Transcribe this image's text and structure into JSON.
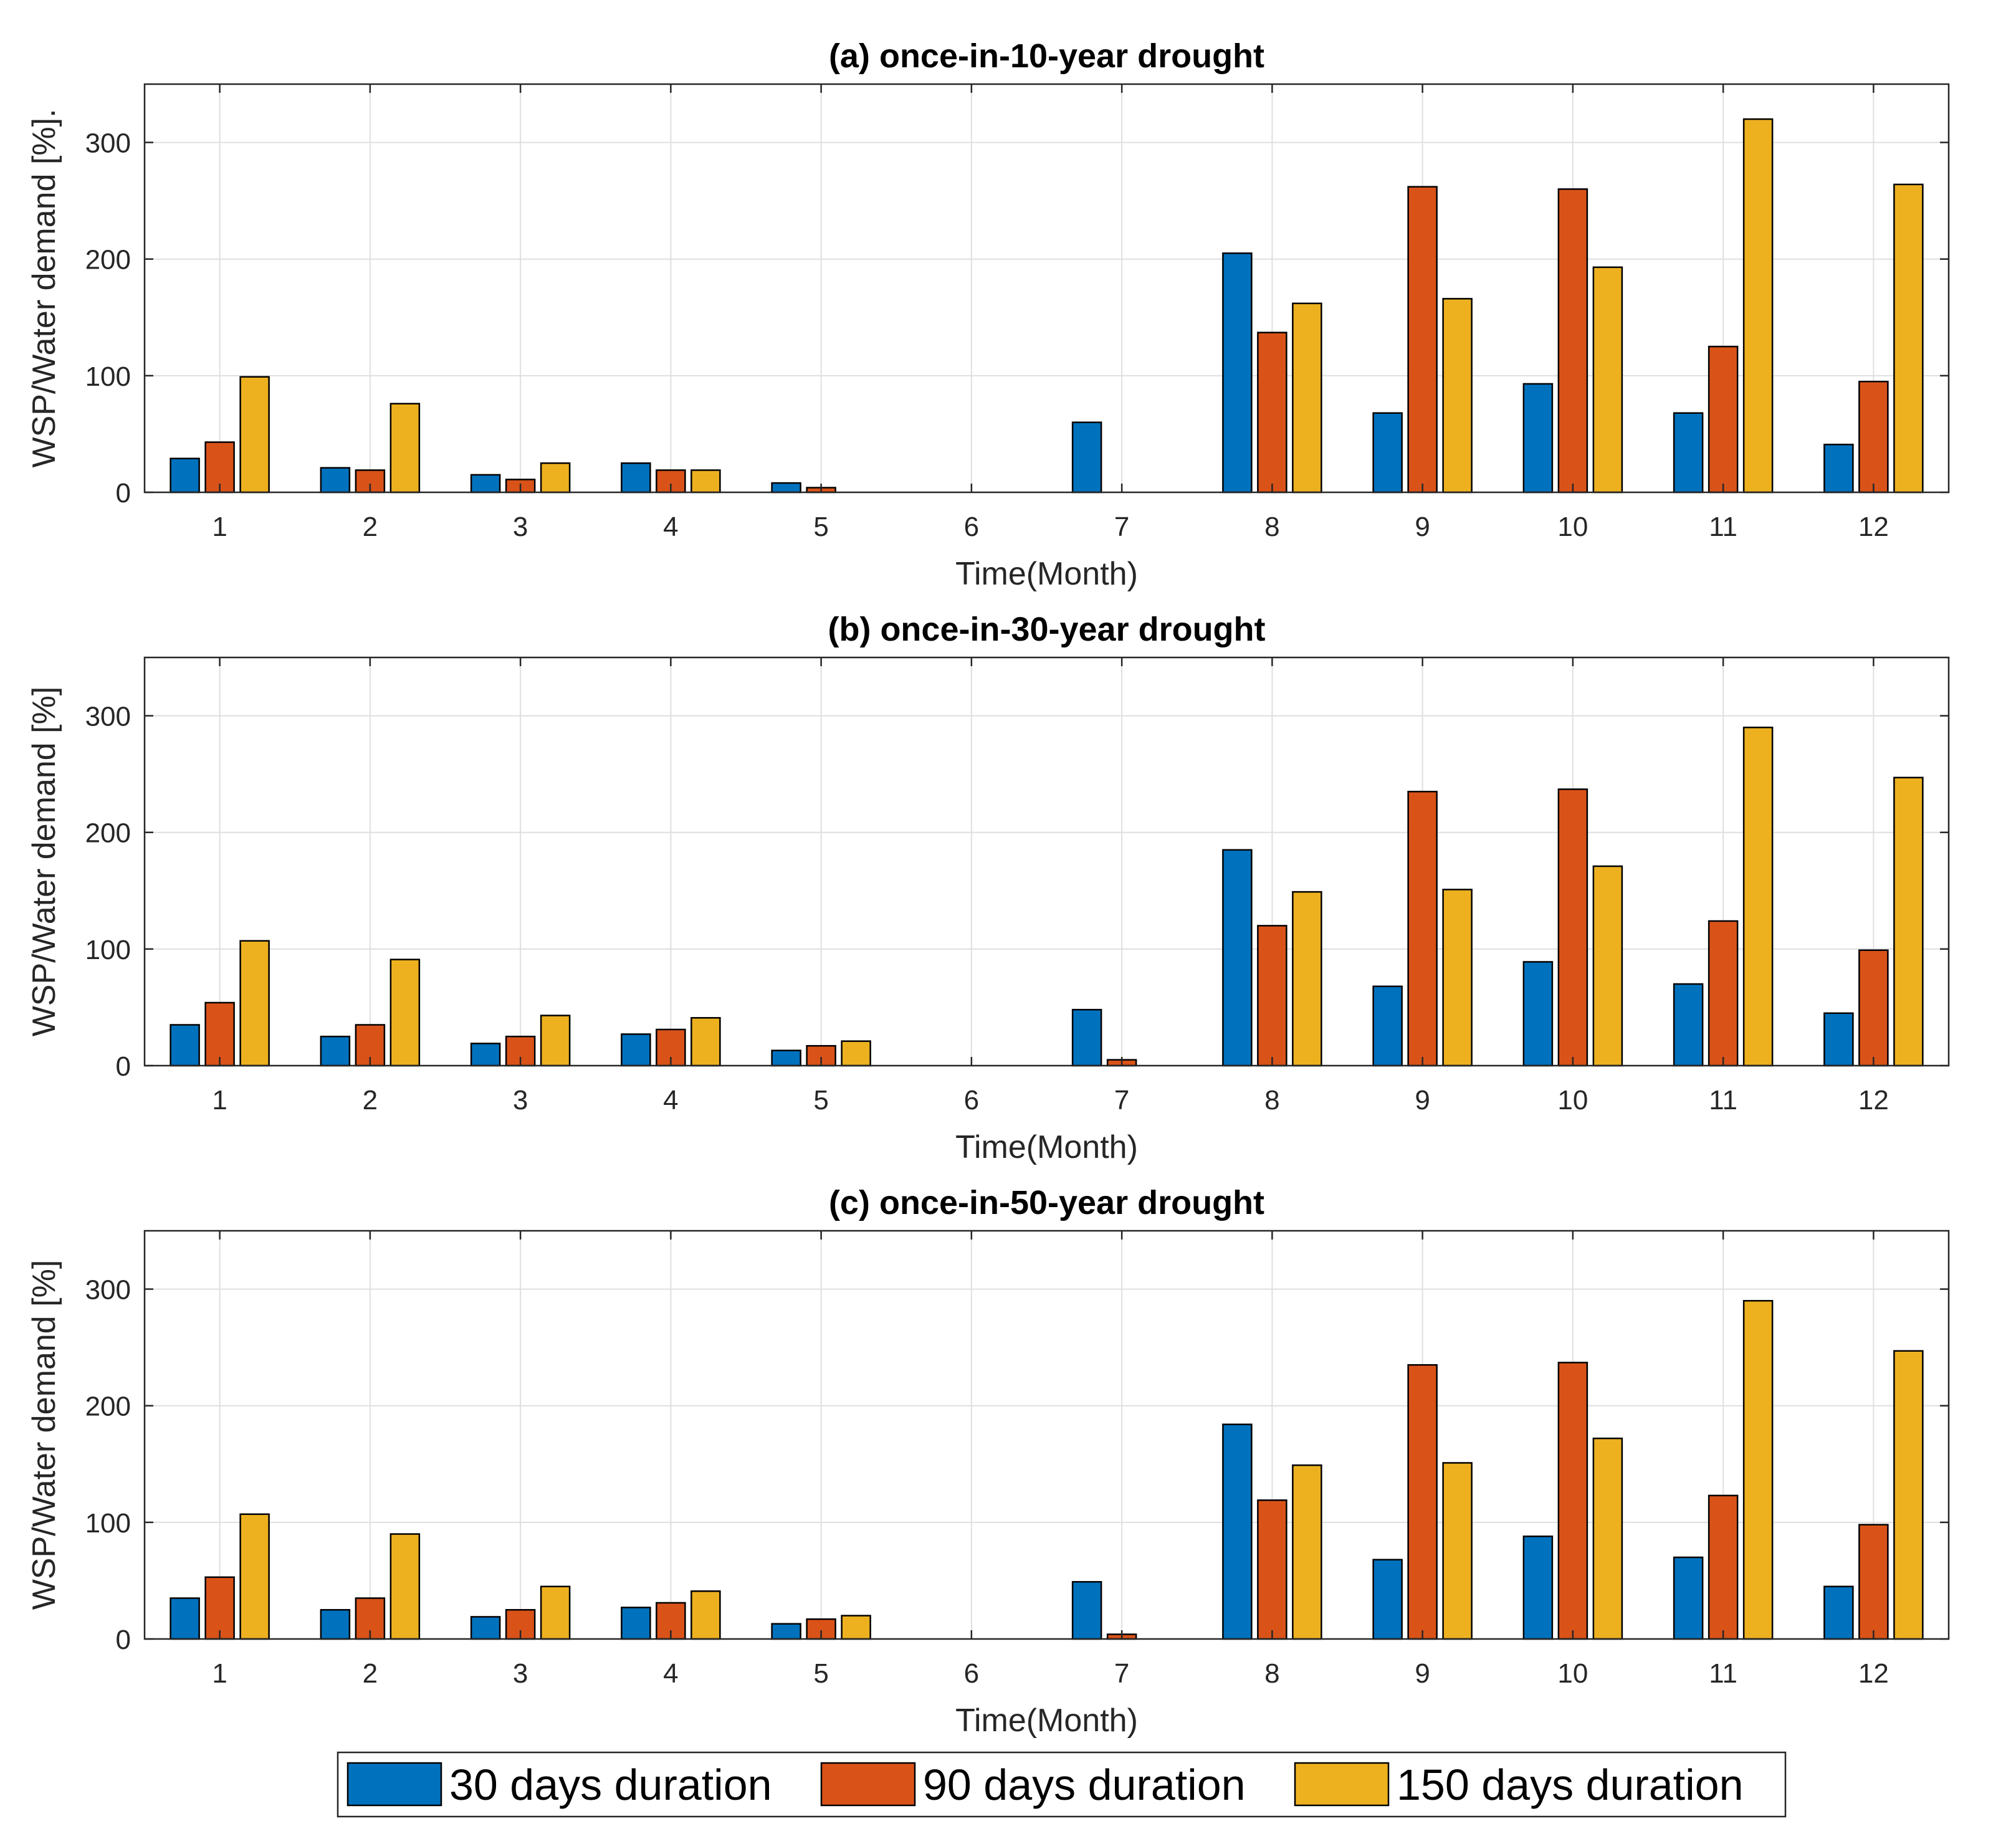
{
  "chart_data": [
    {
      "type": "bar",
      "title": "(a) once-in-10-year drought",
      "xlabel": "Time(Month)",
      "ylabel": "WSP/Water demand [%].",
      "categories": [
        "1",
        "2",
        "3",
        "4",
        "5",
        "6",
        "7",
        "8",
        "9",
        "10",
        "11",
        "12"
      ],
      "ylim": [
        0,
        350
      ],
      "yticks": [
        0,
        100,
        200,
        300
      ],
      "grid": true,
      "series": [
        {
          "name": "30 days duration",
          "values": [
            29,
            21,
            15,
            25,
            8,
            0,
            60,
            205,
            68,
            93,
            68,
            41
          ]
        },
        {
          "name": "90 days duration",
          "values": [
            43,
            19,
            11,
            19,
            4,
            0,
            0,
            137,
            262,
            260,
            125,
            95
          ]
        },
        {
          "name": "150 days duration",
          "values": [
            99,
            76,
            25,
            19,
            0,
            0,
            0,
            162,
            166,
            193,
            320,
            264
          ]
        }
      ]
    },
    {
      "type": "bar",
      "title": "(b) once-in-30-year drought",
      "xlabel": "Time(Month)",
      "ylabel": "WSP/Water demand [%]",
      "categories": [
        "1",
        "2",
        "3",
        "4",
        "5",
        "6",
        "7",
        "8",
        "9",
        "10",
        "11",
        "12"
      ],
      "ylim": [
        0,
        350
      ],
      "yticks": [
        0,
        100,
        200,
        300
      ],
      "grid": true,
      "series": [
        {
          "name": "30 days duration",
          "values": [
            35,
            25,
            19,
            27,
            13,
            0,
            48,
            185,
            68,
            89,
            70,
            45
          ]
        },
        {
          "name": "90 days duration",
          "values": [
            54,
            35,
            25,
            31,
            17,
            0,
            5,
            120,
            235,
            237,
            124,
            99
          ]
        },
        {
          "name": "150 days duration",
          "values": [
            107,
            91,
            43,
            41,
            21,
            0,
            0,
            149,
            151,
            171,
            290,
            247
          ]
        }
      ]
    },
    {
      "type": "bar",
      "title": "(c) once-in-50-year drought",
      "xlabel": "Time(Month)",
      "ylabel": "WSP/Water demand [%]",
      "categories": [
        "1",
        "2",
        "3",
        "4",
        "5",
        "6",
        "7",
        "8",
        "9",
        "10",
        "11",
        "12"
      ],
      "ylim": [
        0,
        350
      ],
      "yticks": [
        0,
        100,
        200,
        300
      ],
      "grid": true,
      "series": [
        {
          "name": "30 days duration",
          "values": [
            35,
            25,
            19,
            27,
            13,
            0,
            49,
            184,
            68,
            88,
            70,
            45
          ]
        },
        {
          "name": "90 days duration",
          "values": [
            53,
            35,
            25,
            31,
            17,
            0,
            4,
            119,
            235,
            237,
            123,
            98
          ]
        },
        {
          "name": "150 days duration",
          "values": [
            107,
            90,
            45,
            41,
            20,
            0,
            0,
            149,
            151,
            172,
            290,
            247
          ]
        }
      ]
    }
  ],
  "legend": {
    "position": "bottom-center",
    "items": [
      {
        "label": "30 days duration",
        "color": "#0072BD"
      },
      {
        "label": "90 days duration",
        "color": "#D95319"
      },
      {
        "label": "150 days duration",
        "color": "#EDB120"
      }
    ]
  },
  "colors": {
    "series": [
      "#0072BD",
      "#D95319",
      "#EDB120"
    ],
    "grid": "#DFDFDF",
    "axis": "#262626"
  }
}
